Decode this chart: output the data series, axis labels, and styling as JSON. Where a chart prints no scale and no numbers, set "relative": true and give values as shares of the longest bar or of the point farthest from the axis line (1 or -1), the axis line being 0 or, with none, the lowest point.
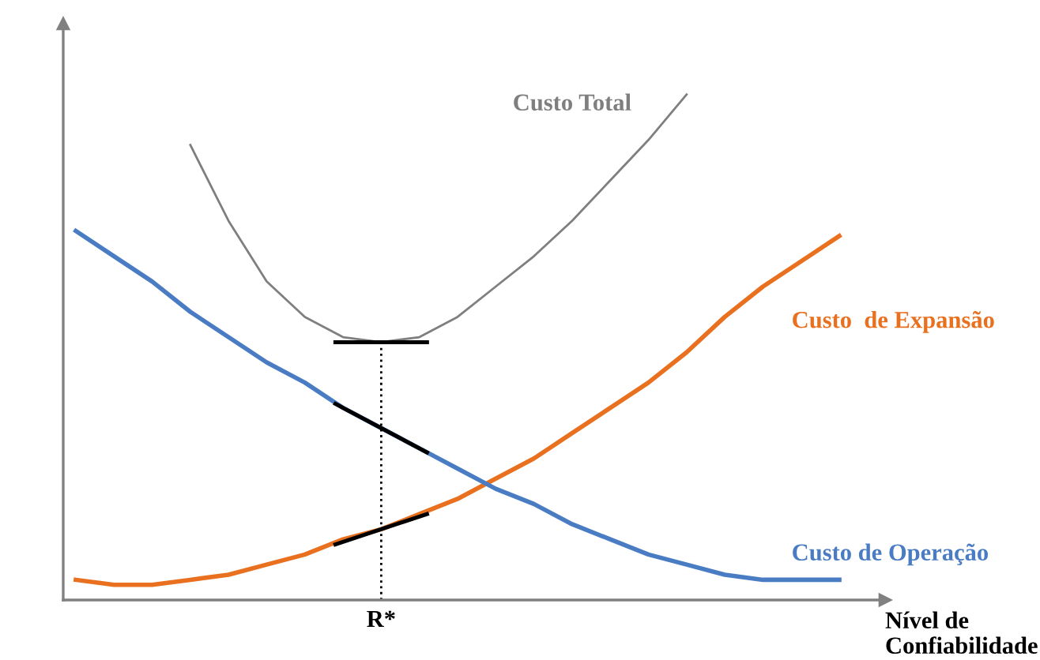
{
  "chart_data": {
    "type": "line",
    "relative": true,
    "xlabel": "Nível de\nConfiabilidade",
    "categories": [
      null,
      null,
      null,
      null,
      null,
      null,
      null,
      null,
      null,
      null,
      null,
      null,
      null,
      null,
      null,
      null,
      null,
      null,
      null,
      null,
      null
    ],
    "annotations": [
      "R*"
    ],
    "series": [
      {
        "name": "Custo Total",
        "color": "#7f7f7f",
        "values": [
          null,
          null,
          null,
          0.9,
          0.75,
          0.63,
          0.56,
          0.52,
          0.51,
          0.52,
          0.56,
          0.62,
          0.68,
          0.75,
          0.83,
          0.91,
          1.0,
          null,
          null,
          null,
          null
        ]
      },
      {
        "name": "Custo  de Expansão",
        "color": "#e8701f",
        "values": [
          0.04,
          0.03,
          0.03,
          0.04,
          0.05,
          0.07,
          0.09,
          0.12,
          0.14,
          0.17,
          0.2,
          0.24,
          0.28,
          0.33,
          0.38,
          0.43,
          0.49,
          0.56,
          0.62,
          0.67,
          0.72
        ]
      },
      {
        "name": "Custo de Operação",
        "color": "#4a7cc4",
        "values": [
          0.73,
          0.68,
          0.63,
          0.57,
          0.52,
          0.47,
          0.43,
          0.38,
          0.34,
          0.3,
          0.26,
          0.22,
          0.19,
          0.15,
          0.12,
          0.09,
          0.07,
          0.05,
          0.04,
          0.04,
          0.04
        ]
      }
    ],
    "legend": false,
    "marker": "none",
    "line_style": "solid"
  }
}
